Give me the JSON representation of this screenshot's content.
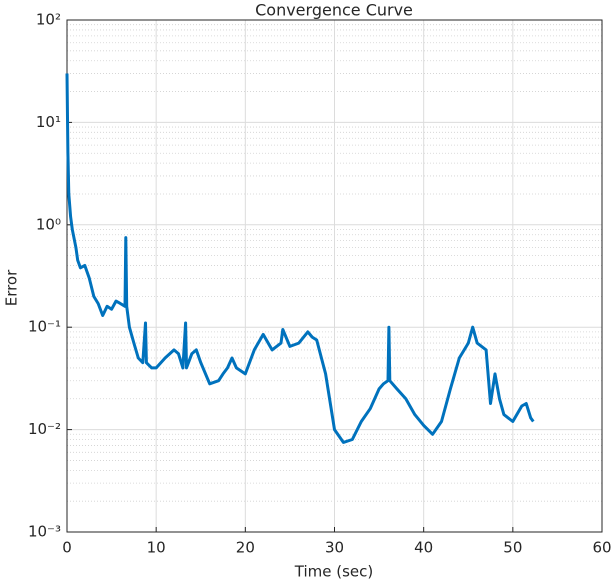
{
  "chart_data": {
    "type": "line",
    "title": "Convergence Curve",
    "xlabel": "Time (sec)",
    "ylabel": "Error",
    "xlim": [
      0,
      60
    ],
    "xticks": [
      0,
      10,
      20,
      30,
      40,
      50,
      60
    ],
    "ylim": [
      0.001,
      100
    ],
    "yscale": "log",
    "yticks": [
      {
        "value": 0.001,
        "label": "10⁻³"
      },
      {
        "value": 0.01,
        "label": "10⁻²"
      },
      {
        "value": 0.1,
        "label": "10⁻¹"
      },
      {
        "value": 1,
        "label": "10⁰"
      },
      {
        "value": 10,
        "label": "10¹"
      },
      {
        "value": 100,
        "label": "10²"
      }
    ],
    "grid": true,
    "minor_grid": true,
    "x": [
      0,
      0.1,
      0.2,
      0.4,
      0.6,
      1,
      1.2,
      1.5,
      2,
      2.5,
      3,
      3.5,
      4,
      4.5,
      5,
      5.5,
      6,
      6.5,
      6.6,
      6.7,
      7,
      7.5,
      8,
      8.5,
      8.8,
      8.9,
      9.5,
      10,
      11,
      12,
      12.5,
      13,
      13.3,
      13.4,
      14,
      14.5,
      15,
      16,
      17,
      17.5,
      18,
      18.5,
      19,
      20,
      21,
      22,
      23,
      24,
      24.2,
      25,
      26,
      27,
      27.5,
      28,
      29,
      30,
      31,
      32,
      33,
      34,
      35,
      35.5,
      36,
      36.1,
      36.2,
      37,
      38,
      39,
      40,
      41,
      42,
      43,
      44,
      45,
      45.5,
      46,
      47,
      47.5,
      48,
      48.5,
      49,
      50,
      51,
      51.5,
      52,
      52.3
    ],
    "series": [
      {
        "name": "Error",
        "color": "#0072BD",
        "values": [
          30,
          5,
          2,
          1.2,
          0.9,
          0.6,
          0.45,
          0.38,
          0.4,
          0.3,
          0.2,
          0.17,
          0.13,
          0.16,
          0.15,
          0.18,
          0.17,
          0.16,
          0.75,
          0.16,
          0.1,
          0.07,
          0.05,
          0.045,
          0.11,
          0.045,
          0.04,
          0.04,
          0.05,
          0.06,
          0.055,
          0.04,
          0.11,
          0.04,
          0.055,
          0.06,
          0.045,
          0.028,
          0.03,
          0.035,
          0.04,
          0.05,
          0.04,
          0.035,
          0.06,
          0.085,
          0.06,
          0.07,
          0.095,
          0.065,
          0.07,
          0.09,
          0.08,
          0.075,
          0.035,
          0.01,
          0.0075,
          0.008,
          0.012,
          0.016,
          0.025,
          0.028,
          0.03,
          0.1,
          0.03,
          0.025,
          0.02,
          0.014,
          0.011,
          0.009,
          0.012,
          0.025,
          0.05,
          0.07,
          0.1,
          0.07,
          0.06,
          0.018,
          0.035,
          0.02,
          0.014,
          0.012,
          0.017,
          0.018,
          0.013,
          0.012
        ]
      }
    ]
  }
}
